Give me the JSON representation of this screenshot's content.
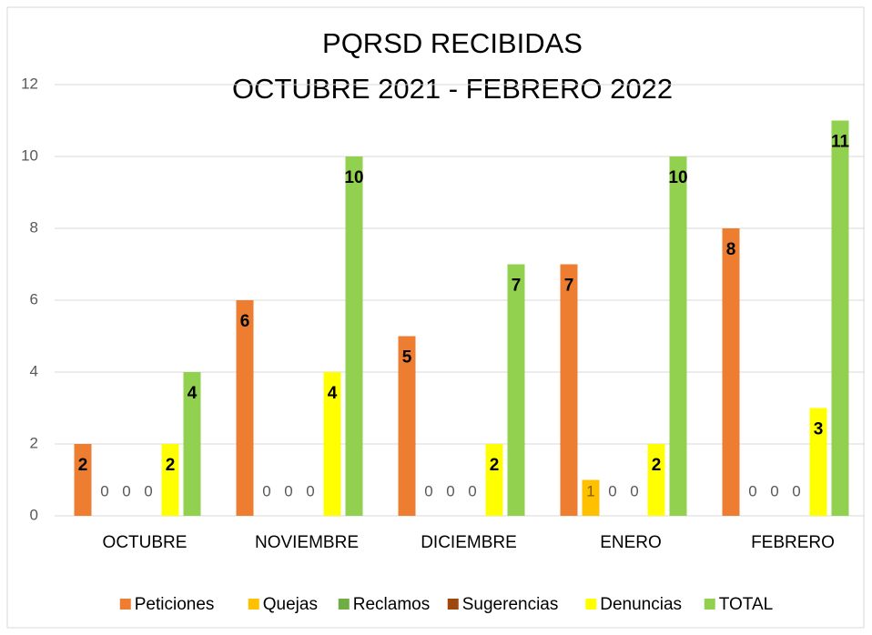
{
  "chart_data": {
    "type": "bar",
    "title": [
      "PQRSD RECIBIDAS",
      "OCTUBRE  2021 - FEBRERO 2022"
    ],
    "categories": [
      "OCTUBRE",
      "NOVIEMBRE",
      "DICIEMBRE",
      "ENERO",
      "FEBRERO"
    ],
    "series": [
      {
        "name": "Peticiones",
        "color": "#ED7D31",
        "values": [
          2,
          6,
          5,
          7,
          8
        ]
      },
      {
        "name": "Quejas",
        "color": "#FFC000",
        "values": [
          0,
          0,
          0,
          1,
          0
        ]
      },
      {
        "name": "Reclamos",
        "color": "#70AD47",
        "values": [
          0,
          0,
          0,
          0,
          0
        ]
      },
      {
        "name": "Sugerencias",
        "color": "#9E480E",
        "values": [
          0,
          0,
          0,
          0,
          0
        ]
      },
      {
        "name": "Denuncias",
        "color": "#FFFF00",
        "values": [
          2,
          4,
          2,
          2,
          3
        ]
      },
      {
        "name": "TOTAL",
        "color": "#92D050",
        "values": [
          4,
          10,
          7,
          10,
          11
        ]
      }
    ],
    "ylim": [
      0,
      12
    ],
    "yticks": [
      0,
      2,
      4,
      6,
      8,
      10,
      12
    ],
    "grid": true,
    "legend": "bottom"
  }
}
